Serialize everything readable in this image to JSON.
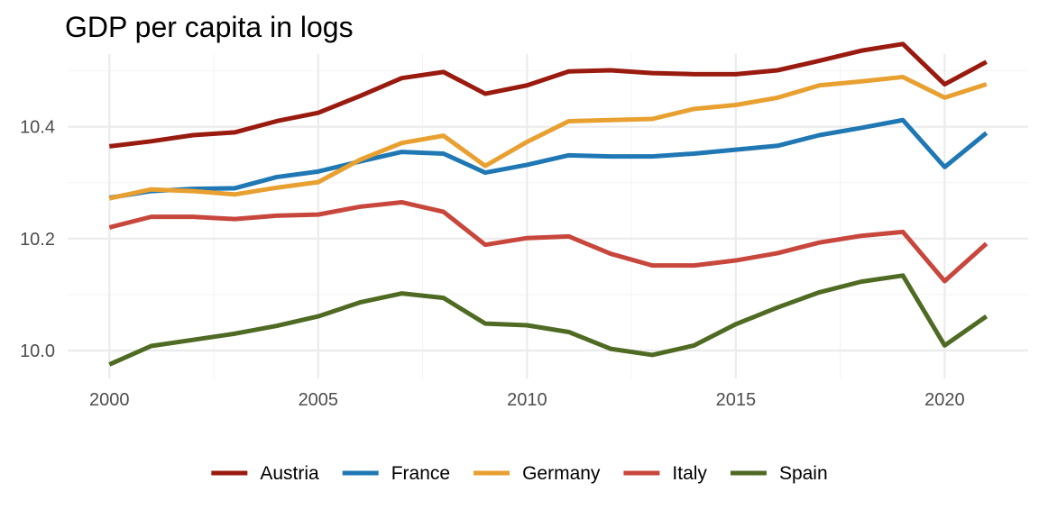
{
  "chart_data": {
    "type": "line",
    "title": "GDP per capita in logs",
    "xlabel": "",
    "ylabel": "",
    "x": [
      2000,
      2001,
      2002,
      2003,
      2004,
      2005,
      2006,
      2007,
      2008,
      2009,
      2010,
      2011,
      2012,
      2013,
      2014,
      2015,
      2016,
      2017,
      2018,
      2019,
      2020,
      2021
    ],
    "xlim": [
      1999,
      2022
    ],
    "ylim": [
      9.95,
      10.53
    ],
    "x_ticks": [
      2000,
      2005,
      2010,
      2015,
      2020
    ],
    "x_tick_labels": [
      "2000",
      "2005",
      "2010",
      "2015",
      "2020"
    ],
    "y_ticks": [
      10.0,
      10.2,
      10.4
    ],
    "y_tick_labels": [
      "10.0",
      "10.2",
      "10.4"
    ],
    "grid": true,
    "legend_position": "bottom",
    "series": [
      {
        "name": "Austria",
        "color": "#991a0f",
        "values": [
          10.365,
          10.374,
          10.385,
          10.39,
          10.41,
          10.425,
          10.455,
          10.487,
          10.498,
          10.459,
          10.474,
          10.499,
          10.501,
          10.496,
          10.494,
          10.494,
          10.501,
          10.518,
          10.536,
          10.548,
          10.476,
          10.516
        ]
      },
      {
        "name": "France",
        "color": "#1f77b4",
        "values": [
          10.273,
          10.285,
          10.289,
          10.29,
          10.31,
          10.32,
          10.338,
          10.355,
          10.352,
          10.318,
          10.332,
          10.349,
          10.347,
          10.347,
          10.352,
          10.359,
          10.366,
          10.385,
          10.398,
          10.412,
          10.328,
          10.389
        ]
      },
      {
        "name": "Germany",
        "color": "#e8a030",
        "values": [
          10.272,
          10.288,
          10.285,
          10.279,
          10.291,
          10.301,
          10.341,
          10.371,
          10.384,
          10.33,
          10.373,
          10.41,
          10.412,
          10.414,
          10.432,
          10.439,
          10.452,
          10.474,
          10.481,
          10.489,
          10.452,
          10.476
        ]
      },
      {
        "name": "Italy",
        "color": "#c8473d",
        "values": [
          10.22,
          10.239,
          10.239,
          10.235,
          10.241,
          10.243,
          10.257,
          10.265,
          10.248,
          10.189,
          10.201,
          10.204,
          10.173,
          10.152,
          10.152,
          10.161,
          10.174,
          10.193,
          10.205,
          10.212,
          10.124,
          10.191
        ]
      },
      {
        "name": "Spain",
        "color": "#4f6b23",
        "values": [
          9.975,
          10.008,
          10.019,
          10.03,
          10.044,
          10.061,
          10.086,
          10.102,
          10.094,
          10.048,
          10.045,
          10.033,
          10.003,
          9.992,
          10.009,
          10.047,
          10.077,
          10.104,
          10.123,
          10.134,
          10.009,
          10.061
        ]
      }
    ]
  }
}
